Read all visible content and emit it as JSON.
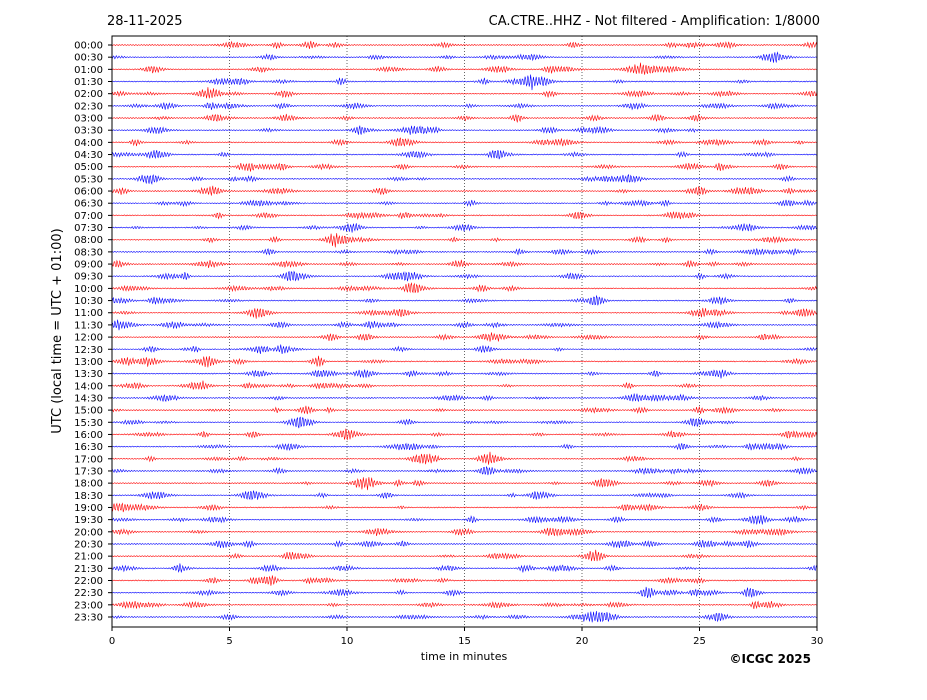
{
  "chart_data": {
    "type": "helicorder",
    "date": "28-11-2025",
    "title": "CA.CTRE..HHZ - Not filtered - Amplification: 1/8000",
    "ylabel": "UTC (local time = UTC + 01:00)",
    "xlabel": "time in minutes",
    "credit": "©ICGC 2025",
    "categories": [
      "00:00",
      "00:30",
      "01:00",
      "01:30",
      "02:00",
      "02:30",
      "03:00",
      "03:30",
      "04:00",
      "04:30",
      "05:00",
      "05:30",
      "06:00",
      "06:30",
      "07:00",
      "07:30",
      "08:00",
      "08:30",
      "09:00",
      "09:30",
      "10:00",
      "10:30",
      "11:00",
      "11:30",
      "12:00",
      "12:30",
      "13:00",
      "13:30",
      "14:00",
      "14:30",
      "15:00",
      "15:30",
      "16:00",
      "16:30",
      "17:00",
      "17:30",
      "18:00",
      "18:30",
      "19:00",
      "19:30",
      "20:00",
      "20:30",
      "21:00",
      "21:30",
      "22:00",
      "22:30",
      "23:00",
      "23:30"
    ],
    "colors": [
      "#ff0000",
      "#0000ff"
    ],
    "xlim": [
      0,
      30
    ],
    "xticks": [
      0,
      5,
      10,
      15,
      20,
      25,
      30
    ],
    "grid": true
  }
}
